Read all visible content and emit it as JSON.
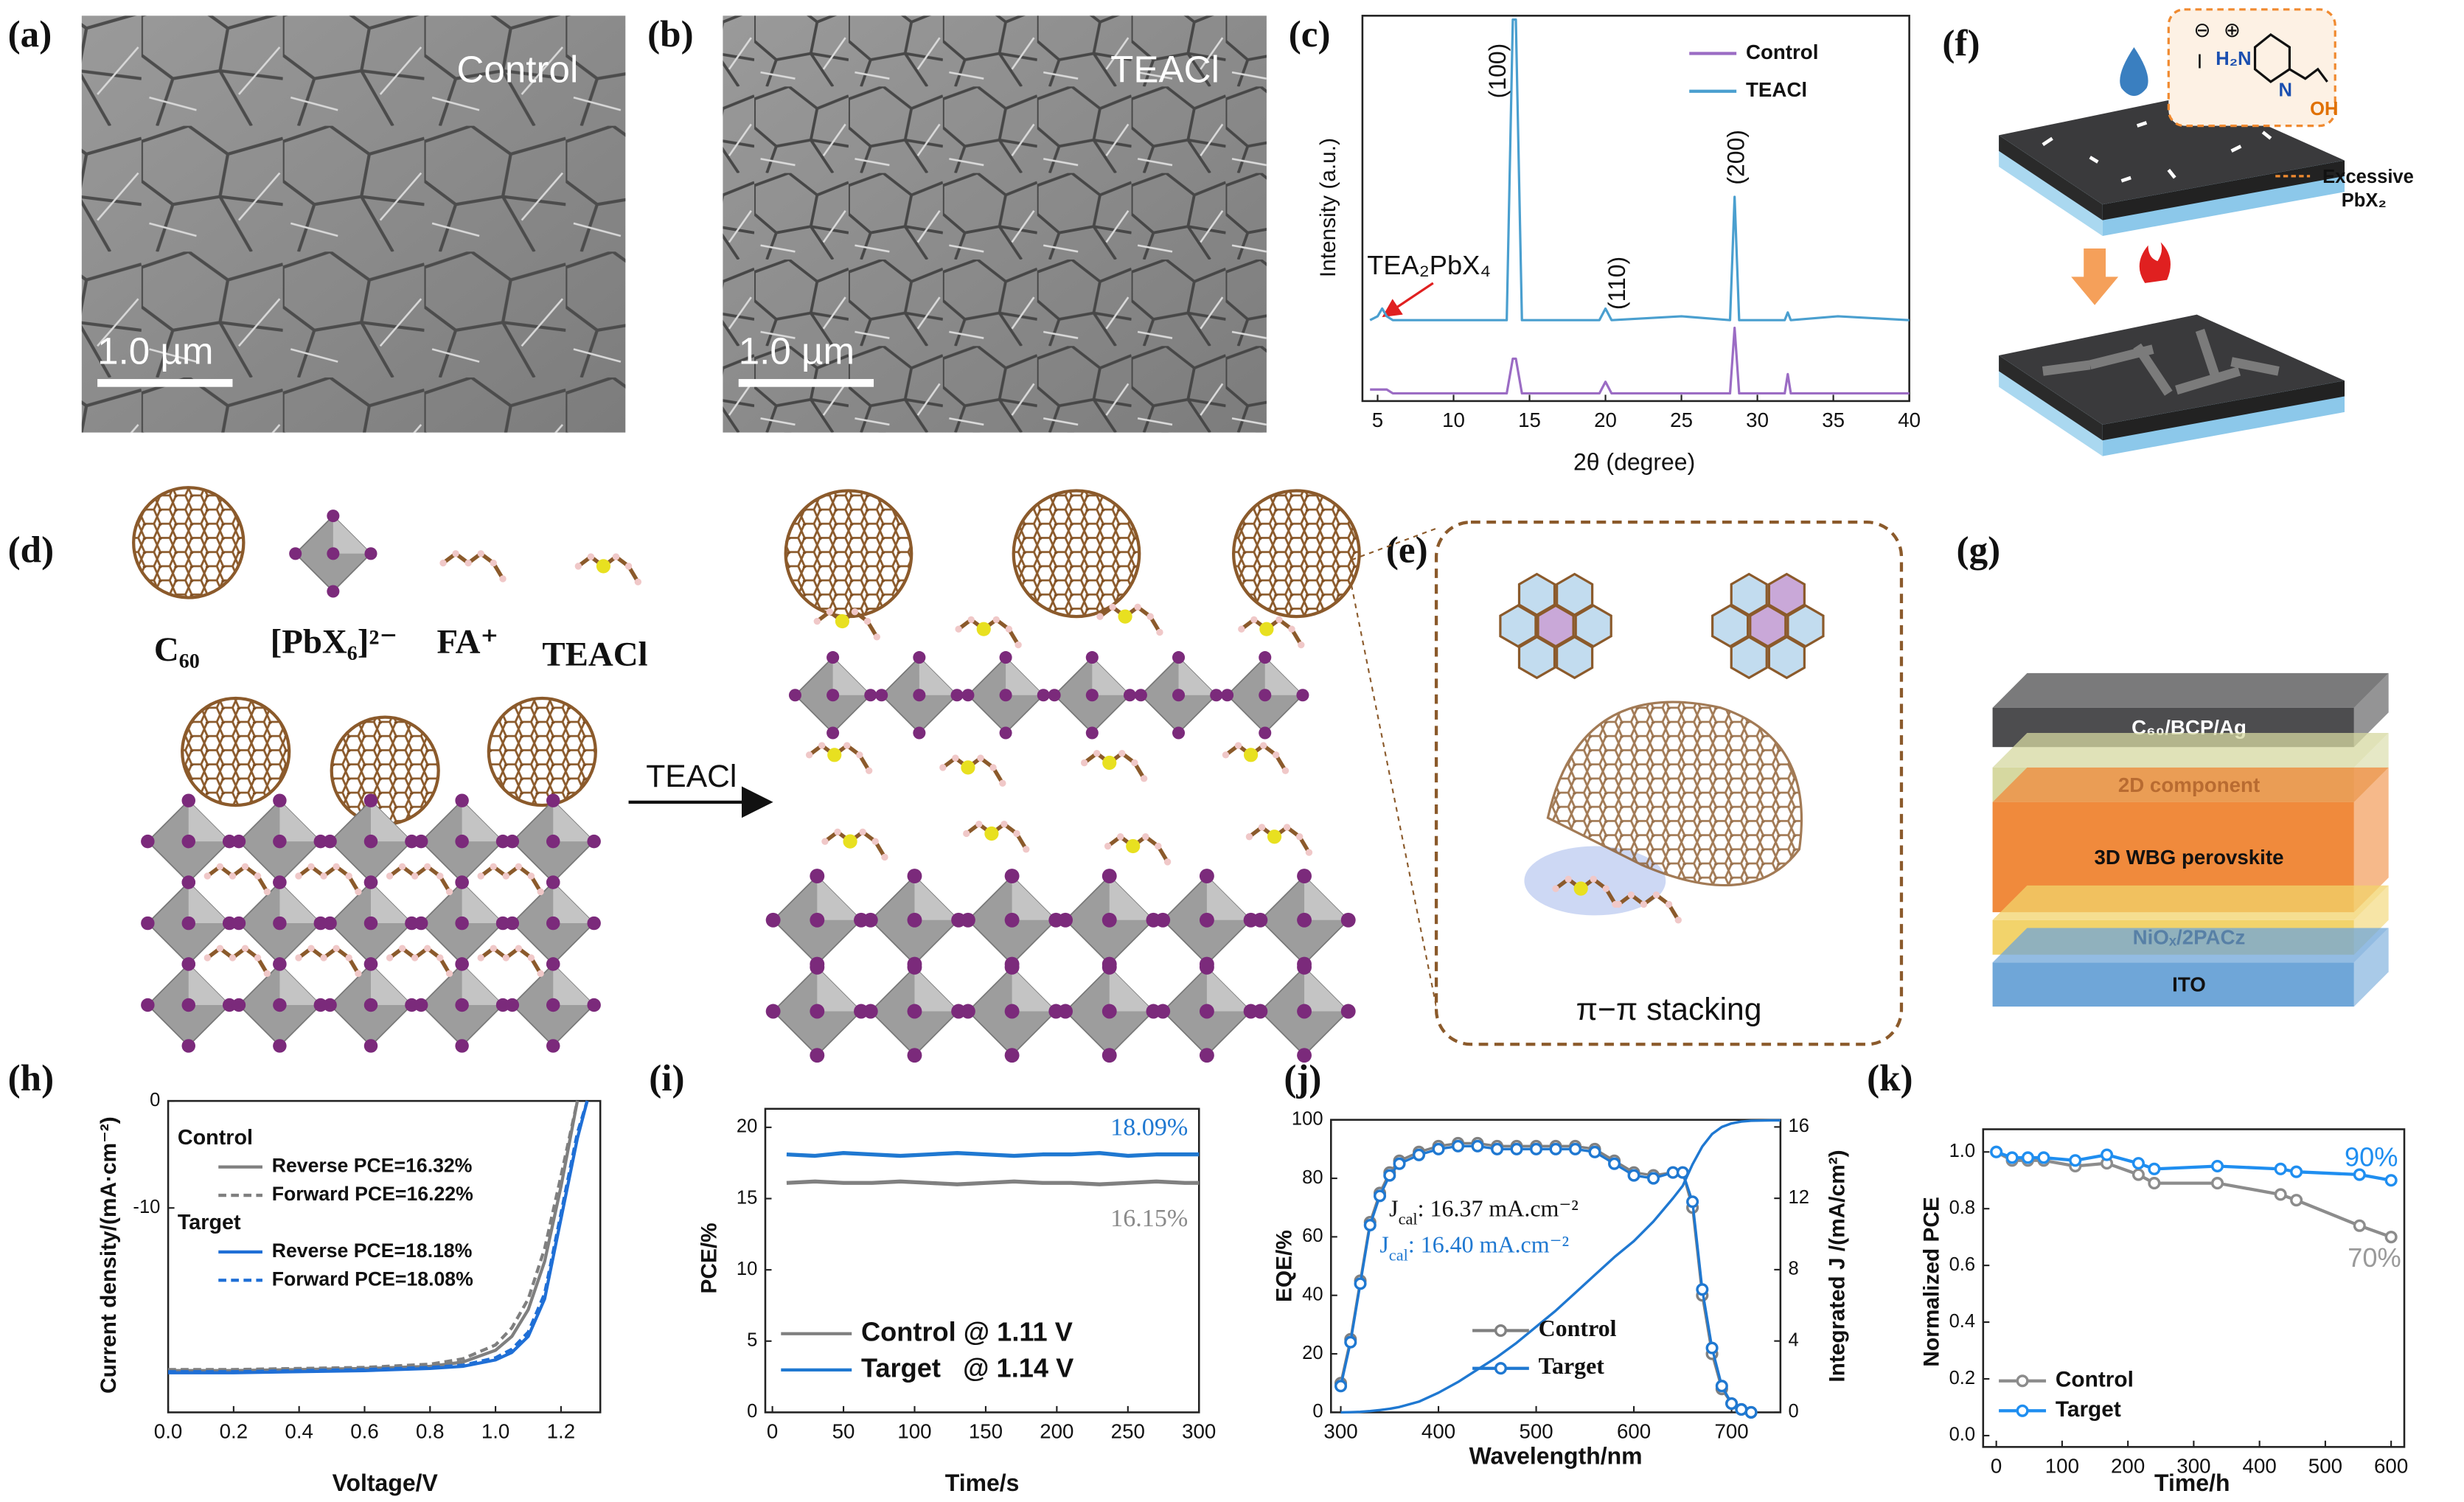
{
  "sem": [
    {
      "label": "(a)",
      "caption": "Control",
      "scale": "1.0 µm"
    },
    {
      "label": "(b)",
      "caption": "TEACl",
      "scale": "1.0 µm"
    }
  ],
  "structure": {
    "label": "(d)",
    "species": [
      "C₆₀",
      "[PbX₆]²⁻",
      "FA⁺",
      "TEACl"
    ],
    "arrow": "TEACl"
  },
  "stacking": {
    "label": "(e)",
    "caption": "π−π stacking"
  },
  "treatment": {
    "label": "(f)",
    "molecule": [
      "⊖",
      "I",
      "⊕",
      "H₂N",
      "N",
      "OH"
    ],
    "note": [
      "Excessive",
      "PbX₂"
    ]
  },
  "device": {
    "label": "(g)",
    "layers": [
      {
        "name": "C₆₀/BCP/Ag",
        "color": "#4d4d4f"
      },
      {
        "name": "2D component",
        "color": "#d6d8a0"
      },
      {
        "name": "3D WBG perovskite",
        "color": "#f08a3c"
      },
      {
        "name": "NiOₓ/2PACz",
        "color": "#f2d36b"
      },
      {
        "name": "ITO",
        "color": "#6fa6d8"
      }
    ]
  },
  "chart_data": [
    {
      "type": "line",
      "label": "(c)",
      "x_label": "2θ (degree)",
      "y_label": "Intensity (a.u.)",
      "xlim": [
        4,
        40
      ],
      "xticks": [
        5,
        10,
        15,
        20,
        25,
        30,
        35,
        40
      ],
      "ylim": [
        0,
        100
      ],
      "legend": "upper right",
      "x": [
        4.5,
        5,
        5.3,
        5.6,
        6,
        10,
        13.5,
        13.9,
        14.1,
        14.5,
        19.6,
        20,
        20.4,
        25,
        28.2,
        28.5,
        28.8,
        31.8,
        32,
        32.2,
        35.3,
        40
      ],
      "series": [
        {
          "name": "Control",
          "color": "#9b6cc4",
          "values": [
            3,
            3,
            3,
            3,
            2,
            2,
            2,
            11,
            11,
            2,
            2,
            5,
            2,
            2,
            2,
            19,
            2,
            2,
            7,
            2,
            2,
            2
          ]
        },
        {
          "name": "TEACl",
          "color": "#4a9fcf",
          "values": [
            21,
            22,
            24,
            22,
            21,
            21,
            21,
            99,
            99,
            21,
            21,
            24,
            21,
            22,
            21,
            53,
            21,
            21,
            23,
            21,
            22,
            21
          ]
        }
      ],
      "annotations": [
        "(100)",
        "(110)",
        "(200)",
        "TEA₂PbX₄"
      ]
    },
    {
      "type": "line",
      "label": "(h)",
      "x_label": "Voltage/V",
      "y_label": "Current density/(mA·cm⁻²)",
      "xlim": [
        0,
        1.32
      ],
      "xticks": [
        {
          "value": 0,
          "label": "0.0"
        },
        0.2,
        0.4,
        0.6,
        0.8,
        {
          "value": 1,
          "label": "1.0"
        },
        1.2
      ],
      "ylim": [
        -29.1,
        0
      ],
      "yticks": [
        0,
        -10
      ],
      "legend": "upper left",
      "legend_titles": [
        "Control",
        "Target"
      ],
      "x": [
        0,
        0.2,
        0.4,
        0.6,
        0.8,
        0.9,
        1.0,
        1.05,
        1.1,
        1.15,
        1.2,
        1.25,
        1.28
      ],
      "series": [
        {
          "name": "Reverse PCE=16.32%",
          "color": "#7f7f7f",
          "dash": false,
          "values": [
            -25.2,
            -25.2,
            -25.1,
            -25.0,
            -24.8,
            -24.4,
            -23.3,
            -22.0,
            -19.5,
            -15.0,
            -8.0,
            0,
            null
          ]
        },
        {
          "name": "Forward PCE=16.22%",
          "color": "#7f7f7f",
          "dash": true,
          "values": [
            -25.1,
            -25.1,
            -25.0,
            -24.9,
            -24.6,
            -24.1,
            -22.8,
            -21.2,
            -18.5,
            -13.8,
            -7.0,
            0,
            null
          ]
        },
        {
          "name": "Reverse PCE=18.18%",
          "color": "#1f6fd6",
          "dash": false,
          "values": [
            -25.4,
            -25.4,
            -25.3,
            -25.2,
            -25.0,
            -24.8,
            -24.2,
            -23.5,
            -22.0,
            -18.5,
            -11.0,
            -3.5,
            0
          ]
        },
        {
          "name": "Forward PCE=18.08%",
          "color": "#1f6fd6",
          "dash": true,
          "values": [
            -25.3,
            -25.3,
            -25.2,
            -25.1,
            -24.9,
            -24.7,
            -24.0,
            -23.2,
            -21.6,
            -18.0,
            -10.5,
            -3.0,
            0
          ]
        }
      ]
    },
    {
      "type": "line",
      "label": "(i)",
      "x_label": "Time/s",
      "y_label": "PCE/%",
      "xlim": [
        -5,
        300
      ],
      "xticks": [
        0,
        50,
        100,
        150,
        200,
        250,
        300
      ],
      "ylim": [
        0,
        21.3
      ],
      "yticks": [
        0,
        5,
        10,
        15,
        20
      ],
      "legend": "lower left",
      "x": [
        10,
        30,
        50,
        70,
        90,
        110,
        130,
        150,
        170,
        190,
        210,
        230,
        250,
        270,
        290,
        300
      ],
      "series": [
        {
          "name": "Control @ 1.11 V",
          "color": "#808080",
          "values": [
            16.1,
            16.2,
            16.1,
            16.1,
            16.2,
            16.1,
            16.0,
            16.1,
            16.2,
            16.1,
            16.1,
            16.0,
            16.1,
            16.2,
            16.1,
            16.1
          ]
        },
        {
          "name": "Target   @ 1.14 V",
          "color": "#1f78d1",
          "values": [
            18.1,
            18.0,
            18.2,
            18.1,
            18.0,
            18.1,
            18.2,
            18.1,
            18.0,
            18.1,
            18.1,
            18.2,
            18.0,
            18.1,
            18.1,
            18.1
          ]
        }
      ],
      "annotations": [
        "18.09%",
        "16.15%"
      ]
    },
    {
      "type": "line",
      "label": "(j)",
      "x_label": "Wavelength/nm",
      "y_label": "EQE/%",
      "y2_label": "Integrated J /(mA/cm²)",
      "xlim": [
        290,
        750
      ],
      "xticks": [
        300,
        400,
        500,
        600,
        700
      ],
      "ylim": [
        0,
        100
      ],
      "yticks": [
        0,
        20,
        40,
        60,
        80,
        100
      ],
      "y2lim": [
        0,
        16.4
      ],
      "y2ticks": [
        0,
        4,
        8,
        12,
        16
      ],
      "legend": "lower right",
      "x": [
        300,
        310,
        320,
        330,
        340,
        350,
        360,
        380,
        400,
        420,
        440,
        460,
        480,
        500,
        520,
        540,
        560,
        580,
        600,
        620,
        640,
        650,
        660,
        670,
        680,
        690,
        700,
        710,
        720,
        740,
        750
      ],
      "series": [
        {
          "name": "Control",
          "color": "#808080",
          "marker": true,
          "values": [
            10,
            25,
            45,
            65,
            75,
            82,
            86,
            89,
            91,
            92,
            92,
            91,
            91,
            91,
            91,
            91,
            90,
            86,
            82,
            81,
            82,
            82,
            70,
            40,
            20,
            8,
            3,
            1,
            0,
            null,
            null
          ]
        },
        {
          "name": "Target",
          "color": "#1f78d1",
          "marker": true,
          "values": [
            9,
            24,
            44,
            64,
            74,
            81,
            85,
            88,
            90,
            91,
            91,
            90,
            90,
            90,
            90,
            90,
            89,
            85,
            81,
            80,
            82,
            82,
            72,
            42,
            22,
            9,
            3,
            1,
            0,
            null,
            null
          ]
        },
        {
          "name": "Integrated J",
          "color": "#1f78d1",
          "axis": "y2",
          "legend": false,
          "values": [
            0,
            0.01,
            0.03,
            0.07,
            0.13,
            0.2,
            0.3,
            0.6,
            1.1,
            1.7,
            2.4,
            3.1,
            3.9,
            4.8,
            5.7,
            6.7,
            7.7,
            8.7,
            9.6,
            10.7,
            12.0,
            12.7,
            13.9,
            14.9,
            15.6,
            16.0,
            16.2,
            16.3,
            16.35,
            16.37,
            16.37
          ]
        }
      ],
      "annotations": [
        [
          "J",
          "cal",
          ": 16.37 mA.cm⁻²"
        ],
        [
          "J",
          "cal",
          ": 16.40 mA.cm⁻²"
        ]
      ]
    },
    {
      "type": "line",
      "label": "(k)",
      "x_label": "Time/h",
      "y_label": "Normalized PCE",
      "xlim": [
        -20,
        620
      ],
      "xticks": [
        0,
        100,
        200,
        300,
        400,
        500,
        600
      ],
      "ylim": [
        -0.04,
        1.08
      ],
      "yticks": [
        {
          "value": 0,
          "label": "0.0"
        },
        0.2,
        0.4,
        0.6,
        0.8,
        {
          "value": 1,
          "label": "1.0"
        }
      ],
      "legend": "lower left",
      "x": [
        0,
        24,
        48,
        72,
        120,
        168,
        216,
        240,
        336,
        432,
        456,
        552,
        600
      ],
      "series": [
        {
          "name": "Control",
          "color": "#8c8c8c",
          "marker": true,
          "values": [
            1.0,
            0.97,
            0.97,
            0.97,
            0.95,
            0.96,
            0.92,
            0.89,
            0.89,
            0.85,
            0.83,
            0.74,
            0.7
          ]
        },
        {
          "name": "Target",
          "color": "#1f8ef0",
          "marker": true,
          "values": [
            1.0,
            0.98,
            0.98,
            0.98,
            0.97,
            0.99,
            0.96,
            0.94,
            0.95,
            0.94,
            0.93,
            0.92,
            0.9
          ]
        }
      ],
      "annotations": [
        "90%",
        "70%"
      ]
    }
  ]
}
